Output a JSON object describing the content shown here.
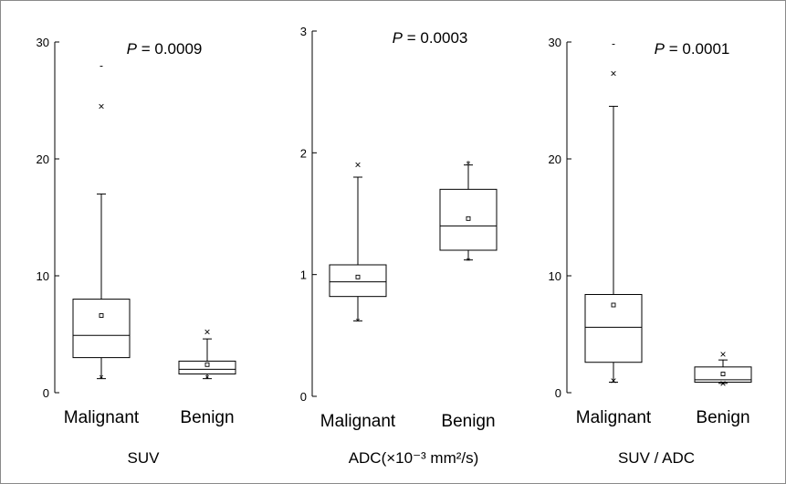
{
  "chart_data": [
    {
      "type": "boxplot",
      "title": "SUV",
      "p_value_label": "P = 0.0009",
      "ylim": [
        0,
        30
      ],
      "yticks": [
        "0",
        "10",
        "20",
        "30"
      ],
      "categories": [
        "Malignant",
        "Benign"
      ],
      "boxes": [
        {
          "q1": 3.0,
          "median": 4.9,
          "q3": 8.0,
          "whisker_low": 1.2,
          "whisker_high": 17.0,
          "mean": 6.6,
          "outliers": [
            {
              "value": 24.5,
              "symbol": "×"
            },
            {
              "value": 28.0,
              "symbol": "-"
            },
            {
              "value": 1.2,
              "symbol": "*"
            }
          ]
        },
        {
          "q1": 1.6,
          "median": 2.0,
          "q3": 2.7,
          "whisker_low": 1.2,
          "whisker_high": 4.6,
          "mean": 2.4,
          "outliers": [
            {
              "value": 5.2,
              "symbol": "×"
            },
            {
              "value": 1.2,
              "symbol": "*"
            }
          ]
        }
      ]
    },
    {
      "type": "boxplot",
      "title": "ADC(×10⁻³ mm²/s)",
      "p_value_label": "P = 0.0003",
      "ylim": [
        0,
        3
      ],
      "yticks": [
        "0",
        "1",
        "2",
        "3"
      ],
      "categories": [
        "Malignant",
        "Benign"
      ],
      "boxes": [
        {
          "q1": 0.82,
          "median": 0.94,
          "q3": 1.08,
          "whisker_low": 0.62,
          "whisker_high": 1.8,
          "mean": 0.98,
          "outliers": [
            {
              "value": 1.9,
              "symbol": "×"
            },
            {
              "value": 0.61,
              "symbol": "*"
            }
          ]
        },
        {
          "q1": 1.2,
          "median": 1.4,
          "q3": 1.7,
          "whisker_low": 1.12,
          "whisker_high": 1.9,
          "mean": 1.46,
          "outliers": [
            {
              "value": 1.9,
              "symbol": "*"
            },
            {
              "value": 1.11,
              "symbol": "*"
            }
          ]
        }
      ]
    },
    {
      "type": "boxplot",
      "title": "SUV / ADC",
      "p_value_label": "P = 0.0001",
      "ylim": [
        0,
        30
      ],
      "yticks": [
        "0",
        "10",
        "20",
        "30"
      ],
      "categories": [
        "Malignant",
        "Benign"
      ],
      "boxes": [
        {
          "q1": 2.6,
          "median": 5.6,
          "q3": 8.4,
          "whisker_low": 0.9,
          "whisker_high": 24.5,
          "mean": 7.5,
          "outliers": [
            {
              "value": 27.3,
              "symbol": "×"
            },
            {
              "value": 29.9,
              "symbol": "-"
            },
            {
              "value": 1.0,
              "symbol": "×"
            }
          ]
        },
        {
          "q1": 0.9,
          "median": 1.1,
          "q3": 2.2,
          "whisker_low": 0.8,
          "whisker_high": 2.8,
          "mean": 1.6,
          "outliers": [
            {
              "value": 3.3,
              "symbol": "×"
            },
            {
              "value": 0.8,
              "symbol": "×"
            }
          ]
        }
      ]
    }
  ]
}
